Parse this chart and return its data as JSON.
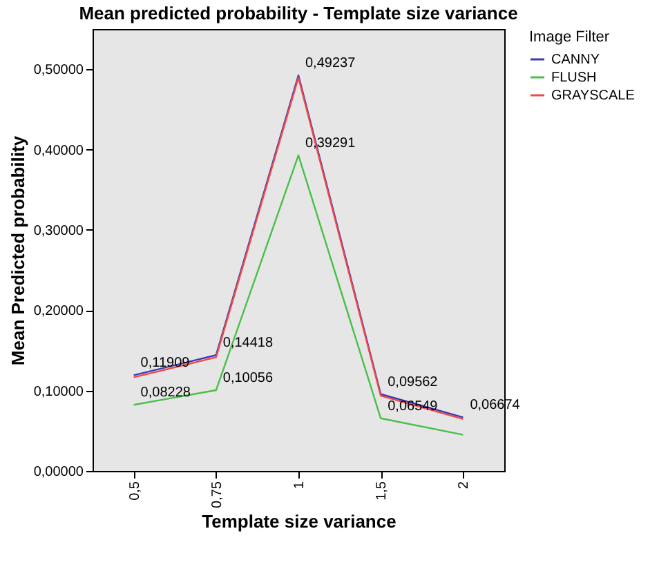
{
  "chart_data": {
    "type": "line",
    "title": "Mean predicted probability - Template size variance",
    "xlabel": "Template size variance",
    "ylabel": "Mean Predicted probability",
    "legend_title": "Image Filter",
    "categories": [
      "0,5",
      "0,75",
      "1",
      "1,5",
      "2"
    ],
    "series": [
      {
        "name": "CANNY",
        "color": "#3a3ab8",
        "values": [
          0.11909,
          0.14418,
          0.49237,
          0.09562,
          0.06674
        ]
      },
      {
        "name": "FLUSH",
        "color": "#48c048",
        "values": [
          0.08228,
          0.10056,
          0.39291,
          0.06549,
          0.045
        ]
      },
      {
        "name": "GRAYSCALE",
        "color": "#f04848",
        "values": [
          0.1165,
          0.1415,
          0.4895,
          0.0935,
          0.0645
        ]
      }
    ],
    "ylim": [
      0,
      0.55
    ],
    "yticks": [
      {
        "value": 0,
        "label": "0,00000"
      },
      {
        "value": 0.1,
        "label": "0,10000"
      },
      {
        "value": 0.2,
        "label": "0,20000"
      },
      {
        "value": 0.3,
        "label": "0,30000"
      },
      {
        "value": 0.4,
        "label": "0,40000"
      },
      {
        "value": 0.5,
        "label": "0,50000"
      }
    ],
    "annotations": [
      {
        "text": "0,11909",
        "x": "0,5",
        "y": 0.11909
      },
      {
        "text": "0,14418",
        "x": "0,75",
        "y": 0.14418
      },
      {
        "text": "0,49237",
        "x": "1",
        "y": 0.49237
      },
      {
        "text": "0,09562",
        "x": "1,5",
        "y": 0.09562
      },
      {
        "text": "0,06674",
        "x": "2",
        "y": 0.06674
      },
      {
        "text": "0,08228",
        "x": "0,5",
        "y": 0.08228
      },
      {
        "text": "0,10056",
        "x": "0,75",
        "y": 0.10056
      },
      {
        "text": "0,39291",
        "x": "1",
        "y": 0.39291
      },
      {
        "text": "0,06549",
        "x": "1,5",
        "y": 0.06549
      }
    ],
    "grid": false,
    "legend": "top right",
    "marker": "none",
    "line_style": "solid"
  }
}
